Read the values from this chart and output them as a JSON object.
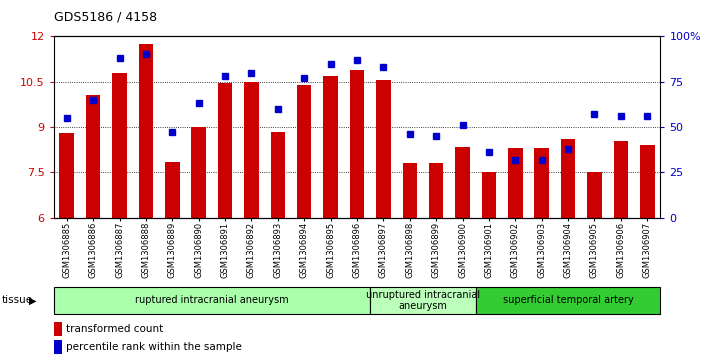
{
  "title": "GDS5186 / 4158",
  "samples": [
    "GSM1306885",
    "GSM1306886",
    "GSM1306887",
    "GSM1306888",
    "GSM1306889",
    "GSM1306890",
    "GSM1306891",
    "GSM1306892",
    "GSM1306893",
    "GSM1306894",
    "GSM1306895",
    "GSM1306896",
    "GSM1306897",
    "GSM1306898",
    "GSM1306899",
    "GSM1306900",
    "GSM1306901",
    "GSM1306902",
    "GSM1306903",
    "GSM1306904",
    "GSM1306905",
    "GSM1306906",
    "GSM1306907"
  ],
  "bar_values": [
    8.8,
    10.05,
    10.8,
    11.75,
    7.85,
    9.0,
    10.45,
    10.5,
    8.85,
    10.4,
    10.7,
    10.9,
    10.55,
    7.8,
    7.8,
    8.35,
    7.5,
    8.3,
    8.3,
    8.6,
    7.5,
    8.55,
    8.4
  ],
  "dot_values": [
    55,
    65,
    88,
    90,
    47,
    63,
    78,
    80,
    60,
    77,
    85,
    87,
    83,
    46,
    45,
    51,
    36,
    32,
    32,
    38,
    57,
    56,
    56
  ],
  "bar_color": "#cc0000",
  "dot_color": "#0000cc",
  "ylim_left": [
    6,
    12
  ],
  "ylim_right": [
    0,
    100
  ],
  "yticks_left": [
    6,
    7.5,
    9,
    10.5,
    12
  ],
  "ytick_labels_left": [
    "6",
    "7.5",
    "9",
    "10.5",
    "12"
  ],
  "yticks_right": [
    0,
    25,
    50,
    75,
    100
  ],
  "ytick_labels_right": [
    "0",
    "25",
    "50",
    "75",
    "100%"
  ],
  "grid_values": [
    7.5,
    9.0,
    10.5
  ],
  "group_ranges": [
    {
      "start": 0,
      "end": 12,
      "label": "ruptured intracranial aneurysm",
      "color": "#aaffaa"
    },
    {
      "start": 12,
      "end": 16,
      "label": "unruptured intracranial\naneurysm",
      "color": "#bbffbb"
    },
    {
      "start": 16,
      "end": 23,
      "label": "superficial temporal artery",
      "color": "#33cc33"
    }
  ],
  "tissue_label": "tissue",
  "legend_bar_label": "transformed count",
  "legend_dot_label": "percentile rank within the sample",
  "bg_color": "#ffffff",
  "tick_label_color_left": "#cc0000",
  "tick_label_color_right": "#0000cc"
}
